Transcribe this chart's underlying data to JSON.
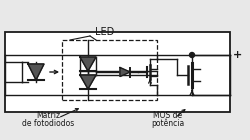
{
  "bg_color": "#e8e8e8",
  "box_color": "#ffffff",
  "line_color": "#1a1a1a",
  "fill_color": "#555555",
  "title": "LED",
  "label1": "Matriz",
  "label2": "de fotodiodos",
  "label3": "MOS de",
  "label4": "potência",
  "plus_sign": "+",
  "figsize": [
    2.5,
    1.4
  ],
  "dpi": 100
}
